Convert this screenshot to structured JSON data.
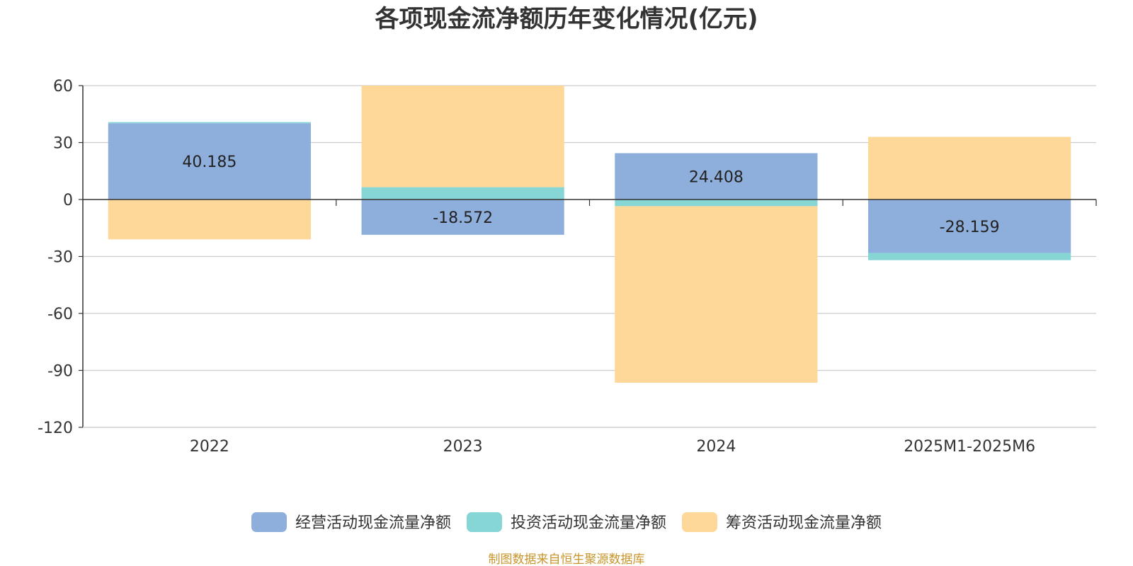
{
  "chart_data": {
    "type": "bar",
    "stacked": true,
    "title": "各项现金流净额历年变化情况(亿元)",
    "categories": [
      "2022",
      "2023",
      "2024",
      "2025M1-2025M6"
    ],
    "ylim": [
      -120,
      60
    ],
    "yticks": [
      60,
      30,
      0,
      -30,
      -60,
      -90,
      -120
    ],
    "series": [
      {
        "name": "经营活动现金流量净额",
        "color": "#8eaedb",
        "values": [
          40.185,
          -18.572,
          24.408,
          -28.159
        ],
        "labels": [
          "40.185",
          "-18.572",
          "24.408",
          "-28.159"
        ]
      },
      {
        "name": "投资活动现金流量净额",
        "color": "#86d6d6",
        "values": [
          0.6,
          6.5,
          -3.5,
          -3.8
        ]
      },
      {
        "name": "筹资活动现金流量净额",
        "color": "#fed898",
        "values": [
          -21.0,
          53.5,
          -93.0,
          33.0
        ]
      }
    ],
    "legend_position": "bottom",
    "grid": true
  },
  "source": {
    "text": "制图数据来自恒生聚源数据库",
    "color": "#c8952a"
  }
}
